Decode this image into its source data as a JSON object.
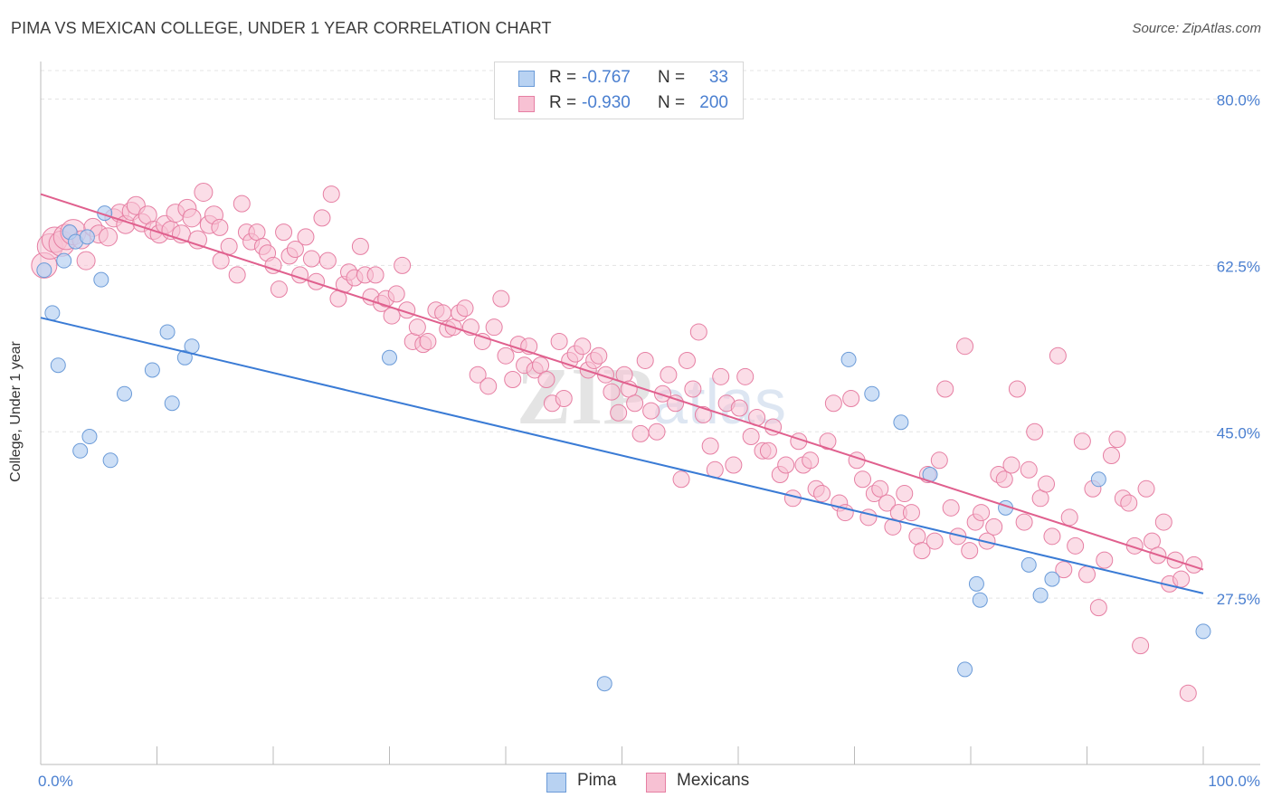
{
  "title": "PIMA VS MEXICAN COLLEGE, UNDER 1 YEAR CORRELATION CHART",
  "source": "Source: ZipAtlas.com",
  "watermark": "ZIPatlas",
  "legend": {
    "pima": {
      "r_label": "R =",
      "r_value": "-0.767",
      "n_label": "N =",
      "n_value": "33"
    },
    "mexicans": {
      "r_label": "R =",
      "r_value": "-0.930",
      "n_label": "N =",
      "n_value": "200"
    }
  },
  "colors": {
    "pima_fill": "#b8d2f2",
    "pima_stroke": "#6b9bd8",
    "pima_line": "#3a7bd5",
    "mex_fill": "#f7c1d3",
    "mex_stroke": "#e67fa3",
    "mex_line": "#e0608e",
    "axis_label": "#4a7fd0"
  },
  "chart_data": {
    "type": "scatter",
    "title": "PIMA VS MEXICAN COLLEGE, UNDER 1 YEAR CORRELATION CHART",
    "xlabel": "",
    "ylabel": "College, Under 1 year",
    "xlim": [
      0,
      100
    ],
    "ylim": [
      10,
      83
    ],
    "x_tick_labels": [
      "0.0%",
      "100.0%"
    ],
    "y_ticks": [
      27.5,
      45.0,
      62.5,
      80.0
    ],
    "y_tick_labels": [
      "27.5%",
      "45.0%",
      "62.5%",
      "80.0%"
    ],
    "grid": "horizontal dashed",
    "legend_position": "top-center",
    "series": [
      {
        "name": "Pima",
        "trend": {
          "x0": 0,
          "y0": 57.0,
          "x1": 100,
          "y1": 28.0
        },
        "points": [
          [
            0.3,
            62.0
          ],
          [
            1.0,
            57.5
          ],
          [
            1.5,
            52.0
          ],
          [
            2.0,
            63.0
          ],
          [
            2.5,
            66.0
          ],
          [
            3.0,
            65.0
          ],
          [
            3.4,
            43.0
          ],
          [
            4.2,
            44.5
          ],
          [
            4.0,
            65.5
          ],
          [
            5.2,
            61.0
          ],
          [
            5.5,
            68.0
          ],
          [
            6.0,
            42.0
          ],
          [
            7.2,
            49.0
          ],
          [
            9.6,
            51.5
          ],
          [
            10.9,
            55.5
          ],
          [
            11.3,
            48.0
          ],
          [
            12.4,
            52.8
          ],
          [
            13.0,
            54.0
          ],
          [
            30.0,
            52.8
          ],
          [
            48.5,
            18.5
          ],
          [
            69.5,
            52.6
          ],
          [
            71.5,
            49.0
          ],
          [
            74.0,
            46.0
          ],
          [
            76.5,
            40.5
          ],
          [
            79.5,
            20.0
          ],
          [
            80.5,
            29.0
          ],
          [
            80.8,
            27.3
          ],
          [
            83.0,
            37.0
          ],
          [
            85.0,
            31.0
          ],
          [
            86.0,
            27.8
          ],
          [
            87.0,
            29.5
          ],
          [
            91.0,
            40.0
          ],
          [
            100.0,
            24.0
          ]
        ]
      },
      {
        "name": "Mexicans",
        "trend": {
          "x0": 0,
          "y0": 70.0,
          "x1": 100,
          "y1": 30.5
        },
        "points": [
          [
            0.3,
            62.5
          ],
          [
            0.8,
            64.5
          ],
          [
            1.2,
            65.2
          ],
          [
            1.8,
            64.8
          ],
          [
            2.2,
            65.5
          ],
          [
            2.8,
            66.0
          ],
          [
            3.5,
            65.2
          ],
          [
            3.9,
            63.0
          ],
          [
            4.5,
            66.5
          ],
          [
            5.0,
            65.8
          ],
          [
            5.8,
            65.5
          ],
          [
            6.3,
            67.5
          ],
          [
            6.8,
            68.0
          ],
          [
            7.3,
            66.8
          ],
          [
            7.8,
            68.2
          ],
          [
            8.2,
            68.8
          ],
          [
            8.7,
            67.0
          ],
          [
            9.2,
            67.8
          ],
          [
            9.7,
            66.2
          ],
          [
            10.2,
            65.8
          ],
          [
            10.7,
            66.8
          ],
          [
            11.2,
            66.2
          ],
          [
            11.6,
            68.0
          ],
          [
            12.1,
            65.8
          ],
          [
            12.6,
            68.5
          ],
          [
            13.0,
            67.5
          ],
          [
            13.5,
            65.2
          ],
          [
            14.0,
            70.2
          ],
          [
            14.5,
            66.8
          ],
          [
            14.9,
            67.8
          ],
          [
            15.4,
            66.5
          ],
          [
            15.5,
            63.0
          ],
          [
            16.2,
            64.5
          ],
          [
            16.9,
            61.5
          ],
          [
            17.3,
            69.0
          ],
          [
            17.7,
            66.0
          ],
          [
            18.1,
            65.0
          ],
          [
            18.6,
            66.0
          ],
          [
            19.1,
            64.5
          ],
          [
            19.5,
            63.8
          ],
          [
            20.0,
            62.5
          ],
          [
            20.5,
            60.0
          ],
          [
            20.9,
            66.0
          ],
          [
            21.4,
            63.5
          ],
          [
            21.9,
            64.2
          ],
          [
            22.3,
            61.5
          ],
          [
            22.8,
            65.5
          ],
          [
            23.3,
            63.2
          ],
          [
            23.7,
            60.8
          ],
          [
            24.2,
            67.5
          ],
          [
            24.7,
            63.0
          ],
          [
            25.0,
            70.0
          ],
          [
            25.6,
            59.0
          ],
          [
            26.1,
            60.5
          ],
          [
            26.5,
            61.8
          ],
          [
            27.0,
            61.2
          ],
          [
            27.5,
            64.5
          ],
          [
            27.9,
            61.5
          ],
          [
            28.4,
            59.2
          ],
          [
            28.8,
            61.5
          ],
          [
            29.3,
            58.5
          ],
          [
            29.7,
            59.0
          ],
          [
            30.2,
            57.2
          ],
          [
            30.6,
            59.5
          ],
          [
            31.1,
            62.5
          ],
          [
            31.5,
            57.8
          ],
          [
            32.0,
            54.5
          ],
          [
            32.4,
            56.0
          ],
          [
            32.9,
            54.2
          ],
          [
            33.3,
            54.5
          ],
          [
            34.0,
            57.8
          ],
          [
            34.6,
            57.5
          ],
          [
            35.0,
            55.8
          ],
          [
            35.5,
            56.0
          ],
          [
            36.0,
            57.5
          ],
          [
            36.5,
            58.0
          ],
          [
            37.0,
            56.0
          ],
          [
            37.6,
            51.0
          ],
          [
            38.0,
            54.5
          ],
          [
            38.5,
            49.8
          ],
          [
            39.0,
            56.0
          ],
          [
            39.6,
            59.0
          ],
          [
            40.0,
            53.0
          ],
          [
            40.6,
            50.5
          ],
          [
            41.1,
            54.2
          ],
          [
            41.6,
            52.0
          ],
          [
            42.0,
            54.0
          ],
          [
            42.5,
            51.5
          ],
          [
            43.0,
            52.0
          ],
          [
            43.5,
            50.5
          ],
          [
            44.0,
            48.0
          ],
          [
            44.6,
            54.5
          ],
          [
            45.0,
            48.5
          ],
          [
            45.5,
            52.5
          ],
          [
            46.0,
            53.2
          ],
          [
            46.6,
            54.0
          ],
          [
            47.1,
            51.5
          ],
          [
            47.6,
            52.5
          ],
          [
            48.0,
            53.0
          ],
          [
            48.6,
            51.0
          ],
          [
            49.1,
            49.2
          ],
          [
            49.7,
            47.0
          ],
          [
            50.2,
            51.0
          ],
          [
            50.6,
            49.5
          ],
          [
            51.1,
            48.0
          ],
          [
            51.6,
            44.8
          ],
          [
            52.0,
            52.5
          ],
          [
            52.5,
            47.2
          ],
          [
            53.0,
            45.0
          ],
          [
            53.5,
            49.0
          ],
          [
            54.0,
            51.0
          ],
          [
            54.6,
            48.0
          ],
          [
            55.1,
            40.0
          ],
          [
            55.6,
            52.5
          ],
          [
            56.1,
            49.5
          ],
          [
            56.6,
            55.5
          ],
          [
            57.0,
            46.8
          ],
          [
            57.6,
            43.5
          ],
          [
            58.0,
            41.0
          ],
          [
            58.5,
            50.8
          ],
          [
            59.0,
            48.0
          ],
          [
            59.6,
            41.5
          ],
          [
            60.1,
            47.5
          ],
          [
            60.6,
            50.8
          ],
          [
            61.1,
            44.5
          ],
          [
            61.6,
            46.5
          ],
          [
            62.1,
            43.0
          ],
          [
            62.6,
            43.0
          ],
          [
            63.0,
            45.5
          ],
          [
            63.6,
            40.5
          ],
          [
            64.1,
            41.5
          ],
          [
            64.7,
            38.0
          ],
          [
            65.2,
            44.0
          ],
          [
            65.6,
            41.5
          ],
          [
            66.2,
            42.0
          ],
          [
            66.7,
            39.0
          ],
          [
            67.2,
            38.5
          ],
          [
            67.7,
            44.0
          ],
          [
            68.2,
            48.0
          ],
          [
            68.7,
            37.5
          ],
          [
            69.2,
            36.5
          ],
          [
            69.7,
            48.5
          ],
          [
            70.2,
            42.0
          ],
          [
            70.7,
            40.0
          ],
          [
            71.2,
            36.0
          ],
          [
            71.7,
            38.5
          ],
          [
            72.2,
            39.0
          ],
          [
            72.8,
            37.5
          ],
          [
            73.3,
            35.0
          ],
          [
            73.8,
            36.5
          ],
          [
            74.3,
            38.5
          ],
          [
            74.9,
            36.5
          ],
          [
            75.4,
            34.0
          ],
          [
            75.8,
            32.5
          ],
          [
            76.3,
            40.5
          ],
          [
            76.9,
            33.5
          ],
          [
            77.3,
            42.0
          ],
          [
            77.8,
            49.5
          ],
          [
            78.3,
            37.0
          ],
          [
            78.9,
            34.0
          ],
          [
            79.5,
            54.0
          ],
          [
            79.9,
            32.5
          ],
          [
            80.4,
            35.5
          ],
          [
            80.9,
            36.5
          ],
          [
            81.4,
            33.5
          ],
          [
            82.0,
            35.0
          ],
          [
            82.4,
            40.5
          ],
          [
            82.9,
            40.0
          ],
          [
            83.5,
            41.5
          ],
          [
            84.0,
            49.5
          ],
          [
            84.6,
            35.5
          ],
          [
            85.0,
            41.0
          ],
          [
            85.5,
            45.0
          ],
          [
            86.0,
            38.0
          ],
          [
            86.5,
            39.5
          ],
          [
            87.0,
            34.0
          ],
          [
            87.5,
            53.0
          ],
          [
            88.0,
            30.5
          ],
          [
            88.5,
            36.0
          ],
          [
            89.0,
            33.0
          ],
          [
            89.6,
            44.0
          ],
          [
            90.0,
            30.0
          ],
          [
            90.5,
            39.0
          ],
          [
            91.0,
            26.5
          ],
          [
            91.5,
            31.5
          ],
          [
            92.1,
            42.5
          ],
          [
            92.6,
            44.2
          ],
          [
            93.1,
            38.0
          ],
          [
            93.6,
            37.5
          ],
          [
            94.1,
            33.0
          ],
          [
            94.6,
            22.5
          ],
          [
            95.1,
            39.0
          ],
          [
            95.6,
            33.5
          ],
          [
            96.1,
            32.0
          ],
          [
            96.6,
            35.5
          ],
          [
            97.1,
            29.0
          ],
          [
            97.6,
            31.5
          ],
          [
            98.1,
            29.5
          ],
          [
            98.7,
            17.5
          ],
          [
            99.2,
            31.0
          ]
        ]
      }
    ]
  }
}
